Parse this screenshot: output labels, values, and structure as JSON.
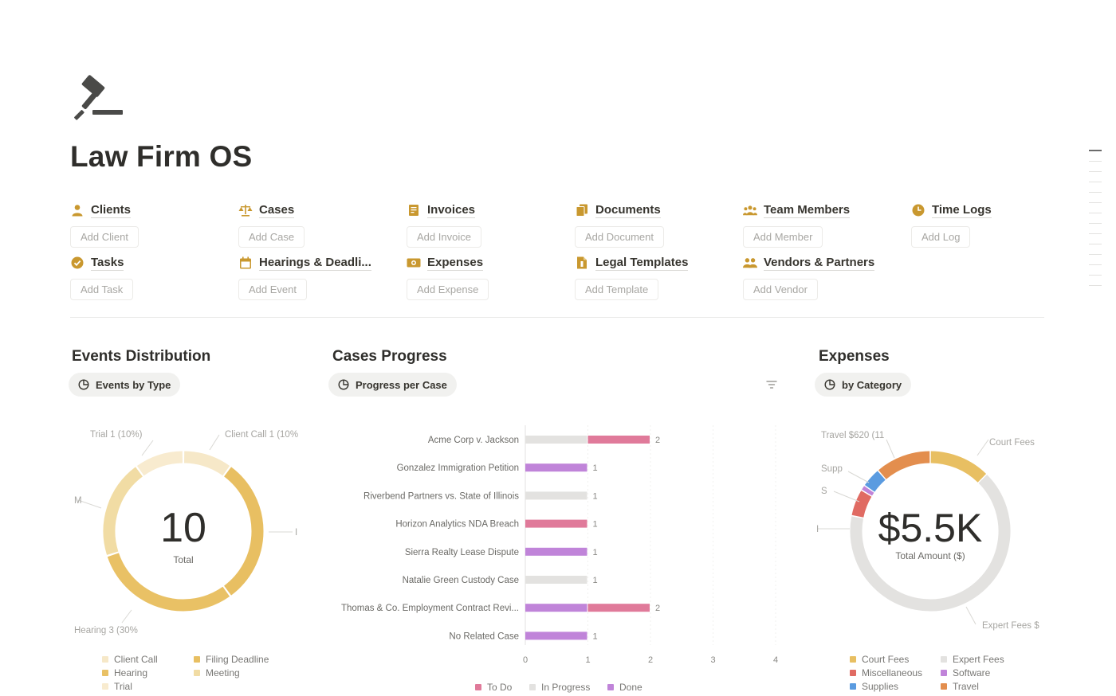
{
  "page": {
    "title": "Law Firm OS",
    "icon": "gavel-icon"
  },
  "databases": [
    {
      "label": "Clients",
      "add": "Add Client",
      "icon": "person-icon"
    },
    {
      "label": "Cases",
      "add": "Add Case",
      "icon": "scales-icon"
    },
    {
      "label": "Invoices",
      "add": "Add Invoice",
      "icon": "receipt-icon"
    },
    {
      "label": "Documents",
      "add": "Add Document",
      "icon": "documents-icon"
    },
    {
      "label": "Team Members",
      "add": "Add Member",
      "icon": "team-icon"
    },
    {
      "label": "Time Logs",
      "add": "Add Log",
      "icon": "clock-icon"
    },
    {
      "label": "Tasks",
      "add": "Add Task",
      "icon": "checkmark-icon"
    },
    {
      "label": "Hearings & Deadli...",
      "add": "Add Event",
      "icon": "calendar-icon"
    },
    {
      "label": "Expenses",
      "add": "Add Expense",
      "icon": "money-icon"
    },
    {
      "label": "Legal Templates",
      "add": "Add Template",
      "icon": "template-icon"
    },
    {
      "label": "Vendors & Partners",
      "add": "Add Vendor",
      "icon": "handshake-icon"
    }
  ],
  "events": {
    "title": "Events Distribution",
    "view": "Events by Type",
    "center_value": "10",
    "center_label": "Total",
    "labels": {
      "trial": "Trial 1 (10%)",
      "client_call": "Client Call 1 (10%",
      "hearing": "Hearing 3 (30%",
      "left_cut": "M",
      "right_cut": "I"
    },
    "legend": [
      {
        "label": "Client Call",
        "color": "#f6e8c8"
      },
      {
        "label": "Filing Deadline",
        "color": "#e8bf62"
      },
      {
        "label": "Hearing",
        "color": "#e9c165"
      },
      {
        "label": "Meeting",
        "color": "#f1dca4"
      },
      {
        "label": "Trial",
        "color": "#f8ebcf"
      }
    ]
  },
  "cases": {
    "title": "Cases Progress",
    "view": "Progress per Case",
    "x_ticks": [
      "0",
      "1",
      "2",
      "3",
      "4"
    ],
    "legend": [
      {
        "label": "To Do",
        "color": "#e07a9a"
      },
      {
        "label": "In Progress",
        "color": "#e3e2e0"
      },
      {
        "label": "Done",
        "color": "#c084d9"
      }
    ]
  },
  "expenses": {
    "title": "Expenses",
    "view": "by Category",
    "center_value": "$5.5K",
    "center_label": "Total Amount ($)",
    "labels": {
      "travel": "Travel $620 (11",
      "court_fees": "Court Fees",
      "supplies": "Supp",
      "software": "S",
      "misc": "I",
      "expert_fees": "Expert Fees $"
    },
    "legend": [
      {
        "label": "Court Fees",
        "color": "#e8bf62"
      },
      {
        "label": "Expert Fees",
        "color": "#e3e2e0"
      },
      {
        "label": "Miscellaneous",
        "color": "#e06b63"
      },
      {
        "label": "Software",
        "color": "#c084d9"
      },
      {
        "label": "Supplies",
        "color": "#5a9be0"
      },
      {
        "label": "Travel",
        "color": "#e38e4e"
      }
    ]
  },
  "chart_data": [
    {
      "type": "pie",
      "title": "Events Distribution",
      "categories": [
        "Client Call",
        "Filing Deadline",
        "Hearing",
        "Meeting",
        "Trial"
      ],
      "values": [
        1,
        3,
        3,
        2,
        1
      ],
      "total": 10
    },
    {
      "type": "bar",
      "title": "Cases Progress",
      "orientation": "horizontal",
      "stacked": true,
      "categories": [
        "Acme Corp v. Jackson",
        "Gonzalez Immigration Petition",
        "Riverbend Partners vs. State of Illinois",
        "Horizon Analytics NDA Breach",
        "Sierra Realty Lease Dispute",
        "Natalie Green Custody Case",
        "Thomas & Co. Employment Contract Revi...",
        "No Related Case"
      ],
      "series": [
        {
          "name": "In Progress",
          "values": [
            1,
            0,
            1,
            0,
            0,
            1,
            0,
            0
          ]
        },
        {
          "name": "Done",
          "values": [
            0,
            1,
            0,
            0,
            1,
            0,
            1,
            1
          ]
        },
        {
          "name": "To Do",
          "values": [
            1,
            0,
            0,
            1,
            0,
            0,
            1,
            0
          ]
        }
      ],
      "totals": [
        2,
        1,
        1,
        1,
        1,
        1,
        2,
        1
      ],
      "xlim": [
        0,
        4
      ]
    },
    {
      "type": "pie",
      "title": "Expenses",
      "categories": [
        "Court Fees",
        "Expert Fees",
        "Miscellaneous",
        "Software",
        "Supplies",
        "Travel"
      ],
      "values": [
        680,
        3600,
        300,
        60,
        220,
        620
      ],
      "total_label": "$5.5K"
    }
  ]
}
